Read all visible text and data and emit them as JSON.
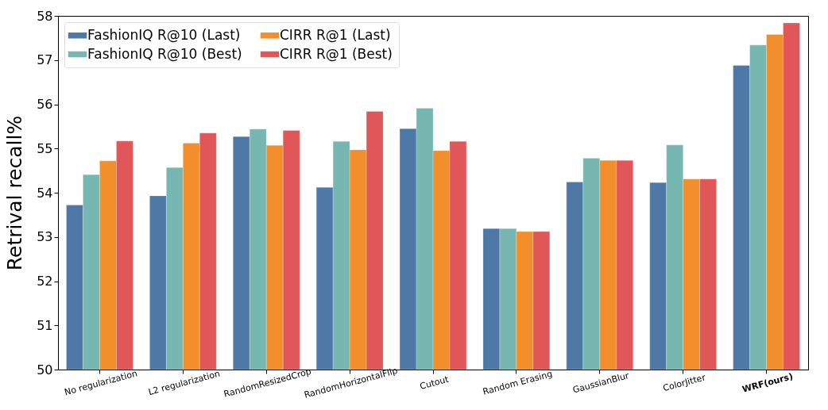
{
  "chart_data": {
    "type": "bar",
    "ylabel": "Retrival recall%",
    "categories": [
      "No regularization",
      "L2 regularization",
      "RandomResizedCrop",
      "RandomHorizontalFlip",
      "Cutout",
      "Random Erasing",
      "GaussianBlur",
      "ColorJitter",
      "WRF(ours)"
    ],
    "series": [
      {
        "name": "FashionIQ R@10 (Last)",
        "color": "#4e79a7",
        "values": [
          53.72,
          53.93,
          55.27,
          54.12,
          55.45,
          53.19,
          54.24,
          54.23,
          56.88
        ]
      },
      {
        "name": "FashionIQ R@10 (Best)",
        "color": "#76b7b2",
        "values": [
          54.41,
          54.57,
          55.44,
          55.16,
          55.91,
          53.19,
          54.78,
          55.08,
          57.34
        ]
      },
      {
        "name": "CIRR R@1 (Last)",
        "color": "#f28e2b",
        "values": [
          54.72,
          55.12,
          55.07,
          54.97,
          54.95,
          53.12,
          54.73,
          54.31,
          57.58
        ]
      },
      {
        "name": "CIRR R@1 (Best)",
        "color": "#e15759",
        "values": [
          55.17,
          55.35,
          55.41,
          55.84,
          55.16,
          53.12,
          54.73,
          54.31,
          57.84
        ]
      }
    ],
    "ylim": [
      50,
      58
    ],
    "yticks": [
      50,
      51,
      52,
      53,
      54,
      55,
      56,
      57,
      58
    ],
    "grid": false,
    "legend": "top left"
  }
}
